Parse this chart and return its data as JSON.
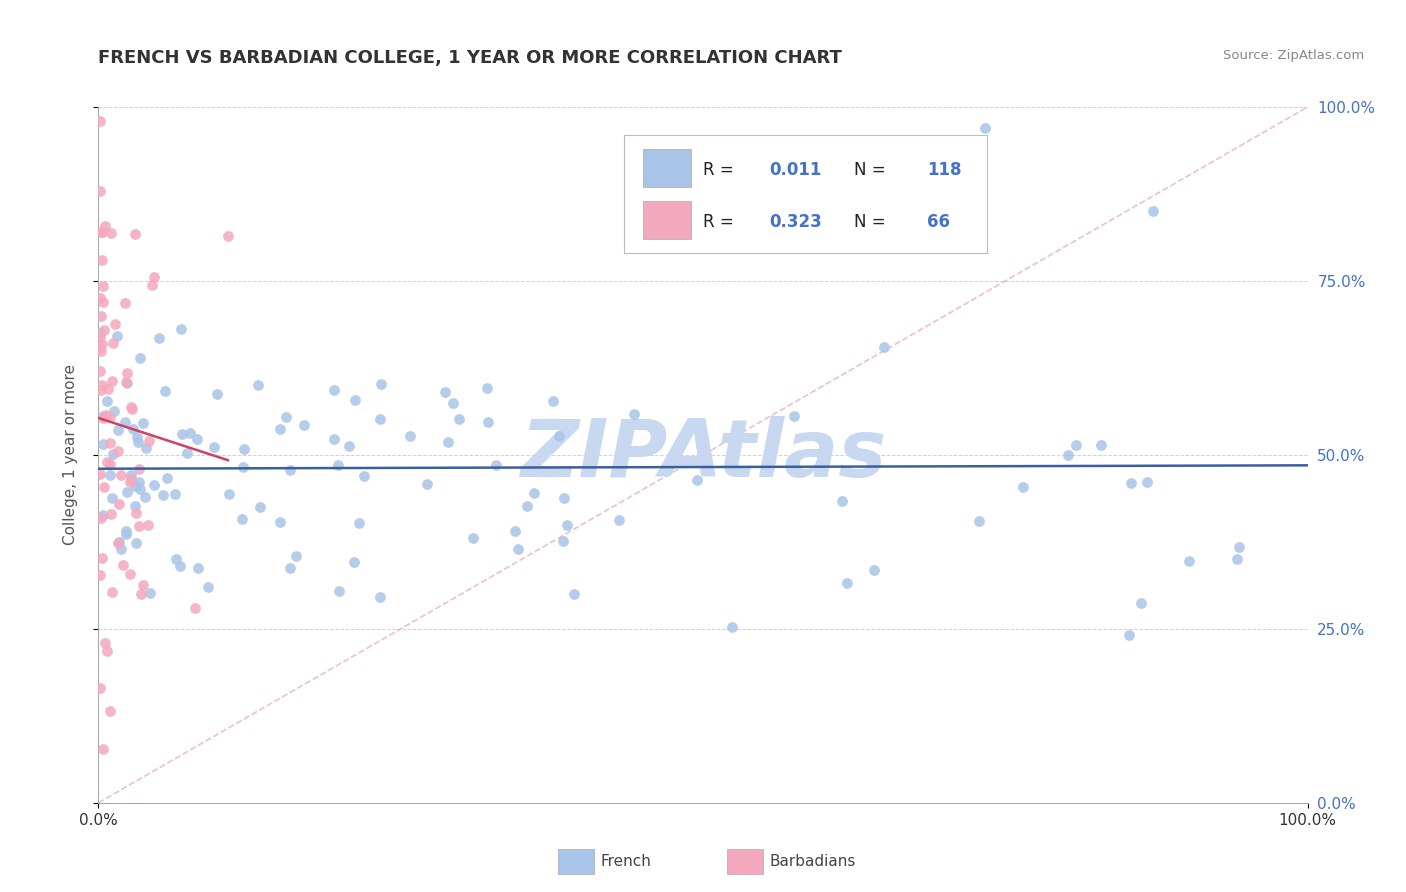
{
  "title": "FRENCH VS BARBADIAN COLLEGE, 1 YEAR OR MORE CORRELATION CHART",
  "source_text": "Source: ZipAtlas.com",
  "ylabel": "College, 1 year or more",
  "xlim": [
    0,
    1
  ],
  "ylim": [
    0,
    1
  ],
  "ytick_values": [
    0,
    0.25,
    0.5,
    0.75,
    1.0
  ],
  "ytick_labels": [
    "0.0%",
    "25.0%",
    "50.0%",
    "75.0%",
    "100.0%"
  ],
  "legend_r1_black": "R = ",
  "legend_r1_blue": "0.011",
  "legend_n1_black": "  N = ",
  "legend_n1_blue": "118",
  "legend_r2_black": "R = ",
  "legend_r2_blue": "0.323",
  "legend_n2_black": "  N = ",
  "legend_n2_blue": " 66",
  "blue_scatter": "#a8c4e8",
  "pink_scatter": "#f4a8be",
  "trend_blue": "#3a5fa0",
  "trend_pink": "#d04060",
  "ref_line_color": "#e8b0c0",
  "watermark_color": "#c8d8f0",
  "grid_color": "#cccccc",
  "label_color": "#4472c4",
  "background_color": "#ffffff",
  "title_color": "#333333",
  "source_color": "#888888"
}
